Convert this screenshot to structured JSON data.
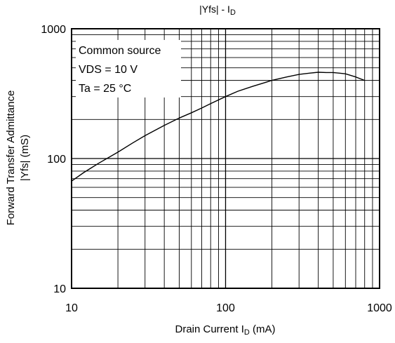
{
  "chart_data": {
    "type": "line",
    "title": "|Yfs| - ",
    "title_sub": "D",
    "title_prefix_sub": "I",
    "xlabel": "Drain Current  ",
    "xlabel_sub_base": "I",
    "xlabel_sub": "D",
    "xlabel_unit": " (mA)",
    "ylabel_line1": "Forward Transfer Admittance",
    "ylabel_line2": "|Yfs| (mS)",
    "x_scale": "log",
    "y_scale": "log",
    "xlim": [
      10,
      1000
    ],
    "ylim": [
      10,
      1000
    ],
    "x_ticks": [
      "10",
      "100",
      "1000"
    ],
    "y_ticks": [
      "10",
      "100",
      "1000"
    ],
    "grid": true,
    "legend_box": [
      "Common source",
      "VDS = 10 V",
      "Ta = 25 °C"
    ],
    "series": [
      {
        "x": [
          10,
          12,
          15,
          20,
          25,
          30,
          40,
          50,
          60,
          70,
          80,
          100,
          120,
          150,
          200,
          250,
          300,
          350,
          400,
          450,
          500,
          550,
          600,
          700,
          800
        ],
        "y": [
          67,
          78,
          92,
          112,
          132,
          150,
          180,
          205,
          225,
          245,
          265,
          300,
          330,
          360,
          400,
          425,
          445,
          455,
          462,
          460,
          460,
          455,
          450,
          425,
          400
        ]
      }
    ]
  }
}
